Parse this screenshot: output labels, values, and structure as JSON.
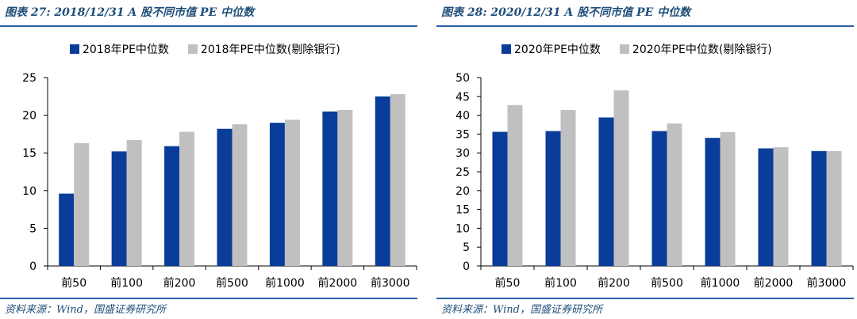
{
  "colors": {
    "primary": "#0a3d9a",
    "secondary": "#c0c0c0",
    "accent": "#1f4e79"
  },
  "left": {
    "fig_title": "图表 27:  2018/12/31 A 股不同市值 PE 中位数",
    "source": "资料来源：Wind，国盛证券研究所"
  },
  "right": {
    "fig_title": "图表 28:  2020/12/31 A 股不同市值 PE 中位数",
    "source": "资料来源：Wind，国盛证券研究所"
  },
  "chart_data": [
    {
      "type": "bar",
      "categories": [
        "前50",
        "前100",
        "前200",
        "前500",
        "前1000",
        "前2000",
        "前3000"
      ],
      "series": [
        {
          "name": "2018年PE中位数",
          "values": [
            9.6,
            15.2,
            15.9,
            18.2,
            19.0,
            20.5,
            22.5
          ]
        },
        {
          "name": "2018年PE中位数(剔除银行)",
          "values": [
            16.3,
            16.7,
            17.8,
            18.8,
            19.4,
            20.7,
            22.8
          ]
        }
      ],
      "ylim": [
        0,
        25
      ],
      "yticks": [
        0,
        5,
        10,
        15,
        20,
        25
      ],
      "legend": "top",
      "grid": false
    },
    {
      "type": "bar",
      "categories": [
        "前50",
        "前100",
        "前200",
        "前500",
        "前1000",
        "前2000",
        "前3000"
      ],
      "series": [
        {
          "name": "2020年PE中位数",
          "values": [
            35.6,
            35.8,
            39.4,
            35.8,
            34.0,
            31.2,
            30.5
          ]
        },
        {
          "name": "2020年PE中位数(剔除银行)",
          "values": [
            42.7,
            41.4,
            46.6,
            37.8,
            35.5,
            31.5,
            30.5
          ]
        }
      ],
      "ylim": [
        0,
        50
      ],
      "yticks": [
        0,
        5,
        10,
        15,
        20,
        25,
        30,
        35,
        40,
        45,
        50
      ],
      "legend": "top",
      "grid": false
    }
  ]
}
